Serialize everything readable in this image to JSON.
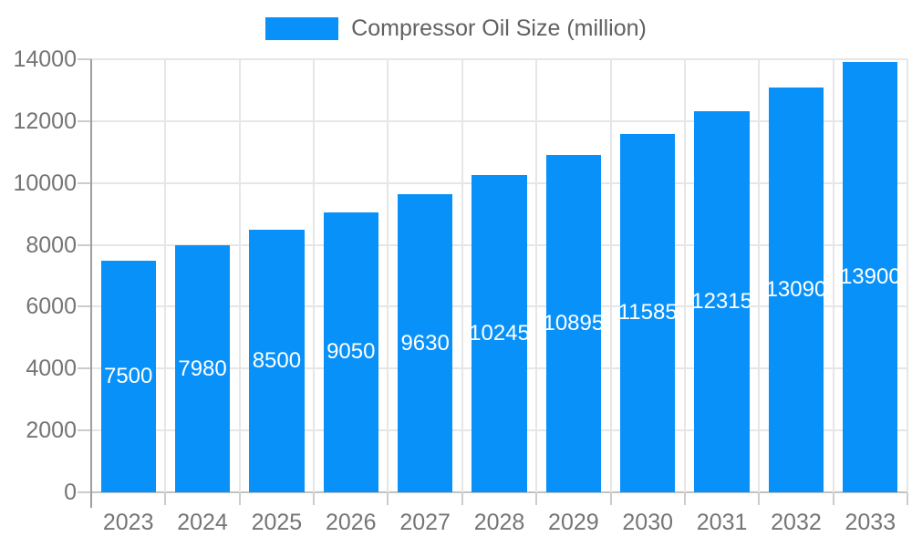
{
  "chart_data": {
    "type": "bar",
    "title": "",
    "legend": "Compressor Oil Size (million)",
    "legend_position": "top-center",
    "categories": [
      "2023",
      "2024",
      "2025",
      "2026",
      "2027",
      "2028",
      "2029",
      "2030",
      "2031",
      "2032",
      "2033"
    ],
    "values": [
      7500,
      7980,
      8500,
      9050,
      9630,
      10245,
      10895,
      11585,
      12315,
      13090,
      13900
    ],
    "value_labels_shown": true,
    "value_label_position": "inside-middle",
    "xlabel": "",
    "ylabel": "",
    "ylim": [
      0,
      14000
    ],
    "ytick_step": 2000,
    "ytick_labels": [
      "0",
      "2000",
      "4000",
      "6000",
      "8000",
      "10000",
      "12000",
      "14000"
    ],
    "grid": "on"
  },
  "colors": {
    "bar": "#0991fa",
    "grid": "#e6e6e6",
    "axis_line": "#9e9e9e",
    "baseline": "#c2c2c2",
    "tick": "#cccccc",
    "axis_text": "#757575",
    "legend_text": "#616161",
    "value_text": "#ffffff",
    "background": "#ffffff"
  }
}
